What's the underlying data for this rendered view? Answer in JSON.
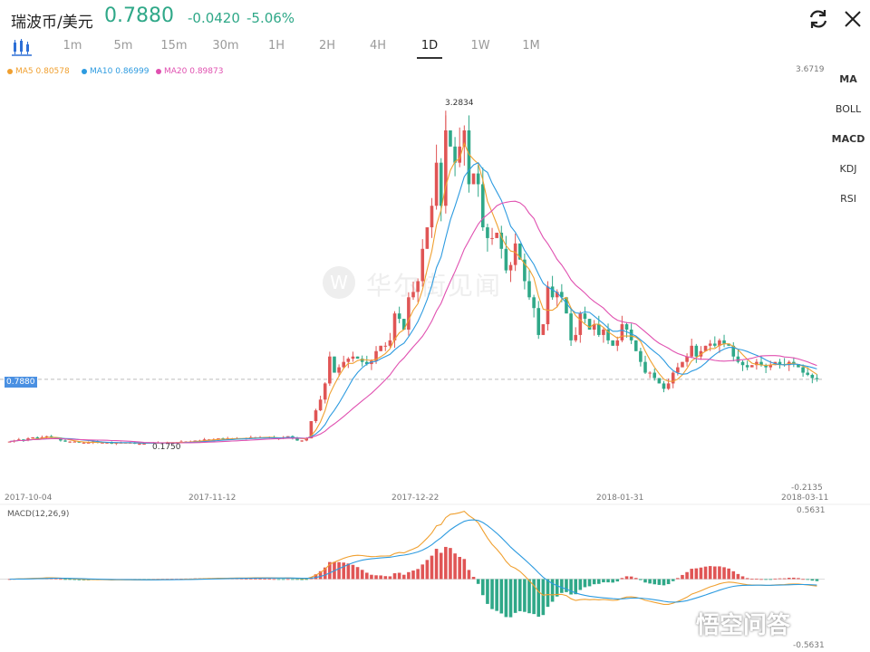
{
  "header": {
    "title": "瑞波币/美元",
    "price": "0.7880",
    "change": "-0.0420",
    "change_pct": "-5.06%",
    "color_down": "#2fa888"
  },
  "timeframes": [
    {
      "label": "1m"
    },
    {
      "label": "5m"
    },
    {
      "label": "15m"
    },
    {
      "label": "30m"
    },
    {
      "label": "1H"
    },
    {
      "label": "2H"
    },
    {
      "label": "4H"
    },
    {
      "label": "1D",
      "active": true
    },
    {
      "label": "1W"
    },
    {
      "label": "1M"
    }
  ],
  "indicators": [
    {
      "label": "MA",
      "active": true
    },
    {
      "label": "BOLL"
    },
    {
      "label": "MACD",
      "active": true
    },
    {
      "label": "KDJ"
    },
    {
      "label": "RSI"
    }
  ],
  "legend": [
    {
      "label": "MA5 0.80578",
      "color": "#f0a030"
    },
    {
      "label": "MA10 0.86999",
      "color": "#2d9be0"
    },
    {
      "label": "MA20 0.89873",
      "color": "#e050b0"
    }
  ],
  "watermark": {
    "logo": "W",
    "text": "华尔街见闻"
  },
  "badge": {
    "text": "悟空问答"
  },
  "chart_data": [
    {
      "type": "candlestick",
      "ylim": [
        -0.2135,
        3.6719
      ],
      "y_top_label": "3.6719",
      "y_bottom_label": "-0.2135",
      "current_price_label": "0.7880",
      "current_price": 0.788,
      "max_label": "3.2834",
      "max_value": 3.2834,
      "min_label": "0.1750",
      "min_value": 0.175,
      "dates": [
        "2017-10-04",
        "2017-11-12",
        "2017-12-22",
        "2018-01-31",
        "2018-03-11"
      ],
      "colors": {
        "up": "#e05555",
        "down": "#2fa888"
      },
      "close_series": [
        0.21,
        0.22,
        0.23,
        0.22,
        0.24,
        0.25,
        0.24,
        0.25,
        0.26,
        0.25,
        0.24,
        0.22,
        0.21,
        0.21,
        0.21,
        0.2,
        0.2,
        0.2,
        0.21,
        0.2,
        0.2,
        0.2,
        0.19,
        0.2,
        0.2,
        0.2,
        0.2,
        0.19,
        0.19,
        0.19,
        0.2,
        0.2,
        0.2,
        0.2,
        0.2,
        0.2,
        0.2,
        0.21,
        0.21,
        0.21,
        0.22,
        0.22,
        0.23,
        0.23,
        0.23,
        0.24,
        0.23,
        0.24,
        0.24,
        0.24,
        0.24,
        0.24,
        0.25,
        0.25,
        0.25,
        0.25,
        0.25,
        0.24,
        0.24,
        0.25,
        0.26,
        0.24,
        0.22,
        0.22,
        0.24,
        0.4,
        0.5,
        0.6,
        0.75,
        1.0,
        0.85,
        0.9,
        0.95,
        0.98,
        1.0,
        0.98,
        0.95,
        0.93,
        0.96,
        1.05,
        1.1,
        1.1,
        1.15,
        1.4,
        1.35,
        1.25,
        1.55,
        1.6,
        1.7,
        2.0,
        2.2,
        2.4,
        2.8,
        2.4,
        3.1,
        2.95,
        2.8,
        2.95,
        3.1,
        2.6,
        2.7,
        2.6,
        2.2,
        2.1,
        2.1,
        2.15,
        2.0,
        1.8,
        1.85,
        2.05,
        1.9,
        1.7,
        1.55,
        1.45,
        1.2,
        1.3,
        1.65,
        1.55,
        1.6,
        1.55,
        1.4,
        1.15,
        1.2,
        1.4,
        1.35,
        1.25,
        1.3,
        1.2,
        1.25,
        1.15,
        1.1,
        1.15,
        1.3,
        1.25,
        1.15,
        1.05,
        0.95,
        0.85,
        0.85,
        0.8,
        0.75,
        0.7,
        0.75,
        0.85,
        0.9,
        0.95,
        1.0,
        1.1,
        1.0,
        1.05,
        1.1,
        1.12,
        1.1,
        1.15,
        1.12,
        1.1,
        1.0,
        0.95,
        0.92,
        0.9,
        0.92,
        0.95,
        0.92,
        0.9,
        0.92,
        0.95,
        0.93,
        0.92,
        0.95,
        0.93,
        0.9,
        0.85,
        0.83,
        0.8,
        0.79
      ],
      "ma_periods": [
        5,
        10,
        20
      ]
    },
    {
      "type": "macd",
      "title": "MACD(12,26,9)",
      "ylim": [
        -0.5631,
        0.5631
      ],
      "y_top_label": "0.5631",
      "y_bottom_label": "-0.5631",
      "colors": {
        "dif": "#f0a030",
        "dea": "#2d9be0",
        "pos": "#e05555",
        "neg": "#2fa888"
      }
    }
  ]
}
